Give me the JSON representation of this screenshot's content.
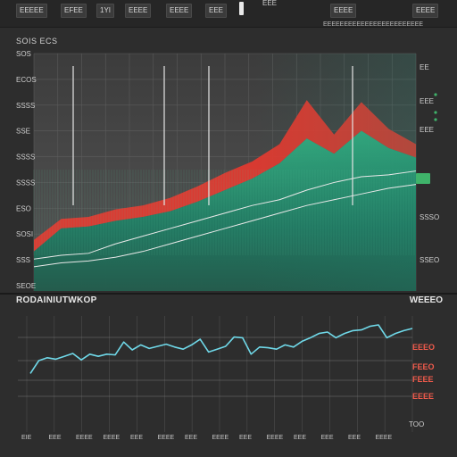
{
  "toolbar": {
    "buttons": [
      "EEEEE",
      "EFEE",
      "1YI",
      "EEEE",
      "EEEE",
      "EEE"
    ],
    "label_text": "EEE",
    "right_text": "EEEE",
    "far_right_text": "EEEE"
  },
  "top_panel": {
    "title": "SOIS ECS",
    "subtitle": "EEEEEEEEEEEEEEEEEEEEEEEE",
    "tag_label": "EEE"
  },
  "bottom_panel": {
    "title_left": "RODAINIUTWKOP",
    "title_right": "WEEEO"
  },
  "colors": {
    "green_area": "#2a9a79",
    "red_area": "#e03a30",
    "line_light": "#e9e9e9",
    "cyan_line": "#6fd8e8",
    "red_label": "#f25b4c",
    "green_marker": "#3fb36a"
  },
  "chart_data": [
    {
      "type": "area",
      "title": "SOIS ECS",
      "y_tick_labels": [
        "SOS",
        "ECOS",
        "SSSS",
        "SSE",
        "SSSS",
        "SSSS",
        "ESO",
        "SOSI",
        "SSS",
        "SEOE"
      ],
      "right_tick_labels": [
        "EE",
        "EEE",
        "EEE",
        "SSSO",
        "SSEO"
      ],
      "series": [
        {
          "values": [
            0.12,
            0.23,
            0.24,
            0.28,
            0.3,
            0.34,
            0.4,
            0.47,
            0.53,
            0.62,
            0.85,
            0.67,
            0.84,
            0.7,
            0.62
          ]
        },
        {
          "values": [
            0.06,
            0.18,
            0.19,
            0.22,
            0.24,
            0.27,
            0.32,
            0.38,
            0.44,
            0.52,
            0.65,
            0.57,
            0.69,
            0.6,
            0.55
          ]
        },
        {
          "values": [
            0.02,
            0.04,
            0.05,
            0.1,
            0.14,
            0.18,
            0.22,
            0.26,
            0.3,
            0.33,
            0.38,
            0.42,
            0.45,
            0.46,
            0.48
          ]
        },
        {
          "values": [
            -0.02,
            0.0,
            0.01,
            0.03,
            0.06,
            0.1,
            0.14,
            0.18,
            0.22,
            0.26,
            0.3,
            0.33,
            0.36,
            0.39,
            0.41
          ]
        }
      ]
    },
    {
      "type": "line",
      "title": "RODAINIUTWKOP",
      "x_tick_labels": [
        "EIE",
        "EEE",
        "EEEE",
        "EEEE",
        "EEE",
        "EEEE",
        "EEE",
        "EEEE",
        "EEE",
        "EEEE",
        "EEE",
        "EEE",
        "EEE",
        "EEEE"
      ],
      "y_tick_labels": [
        "EEEO",
        "FEEO",
        "FEEE",
        "EEEE"
      ],
      "x_label": "TOO",
      "series": [
        {
          "values": [
            0.12,
            0.3,
            0.34,
            0.32,
            0.36,
            0.4,
            0.31,
            0.39,
            0.36,
            0.39,
            0.38,
            0.56,
            0.45,
            0.52,
            0.47,
            0.5,
            0.53,
            0.49,
            0.46,
            0.52,
            0.6,
            0.42,
            0.46,
            0.5,
            0.63,
            0.62,
            0.39,
            0.49,
            0.48,
            0.46,
            0.52,
            0.49,
            0.57,
            0.62,
            0.68,
            0.7,
            0.62,
            0.68,
            0.72,
            0.73,
            0.78,
            0.8,
            0.62,
            0.68,
            0.72,
            0.75
          ]
        }
      ]
    }
  ]
}
